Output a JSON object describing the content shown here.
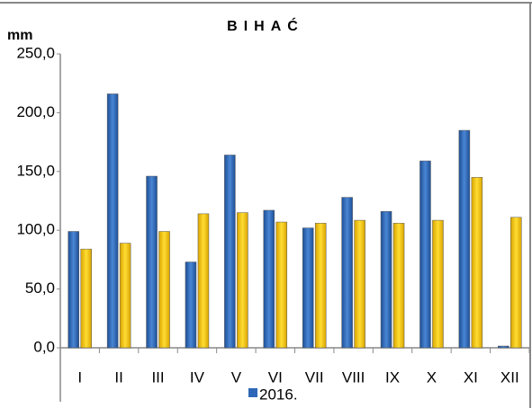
{
  "chart_data": {
    "type": "bar",
    "title": "BIHAĆ",
    "y_label": "mm",
    "categories": [
      "I",
      "II",
      "III",
      "IV",
      "V",
      "VI",
      "VII",
      "VIII",
      "IX",
      "X",
      "XI",
      "XII"
    ],
    "series": [
      {
        "name": "2016.",
        "color": "#2e67b8",
        "values": [
          99,
          216,
          146,
          73,
          164,
          117,
          102,
          128,
          116,
          159,
          185,
          1.5
        ]
      },
      {
        "color": "#f5c400",
        "values": [
          84,
          89,
          99,
          114,
          115,
          107,
          106,
          108.5,
          106,
          108.5,
          145,
          111
        ]
      }
    ],
    "ylim": [
      0,
      250
    ],
    "yticks": [
      {
        "value": 0,
        "label": "0,0"
      },
      {
        "value": 50,
        "label": "50,0"
      },
      {
        "value": 100,
        "label": "100,0"
      },
      {
        "value": 150,
        "label": "150,0"
      },
      {
        "value": 200,
        "label": "200,0"
      },
      {
        "value": 250,
        "label": "250,0"
      }
    ],
    "legend": "bottom"
  }
}
